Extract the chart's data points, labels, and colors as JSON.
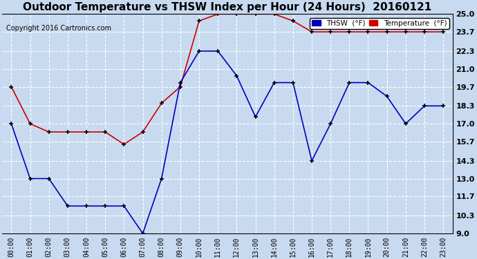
{
  "title": "Outdoor Temperature vs THSW Index per Hour (24 Hours)  20160121",
  "copyright": "Copyright 2016 Cartronics.com",
  "x_labels": [
    "00:00",
    "01:00",
    "02:00",
    "03:00",
    "04:00",
    "05:00",
    "06:00",
    "07:00",
    "08:00",
    "09:00",
    "10:00",
    "11:00",
    "12:00",
    "13:00",
    "14:00",
    "15:00",
    "16:00",
    "17:00",
    "18:00",
    "19:00",
    "20:00",
    "21:00",
    "22:00",
    "23:00"
  ],
  "thsw_values": [
    17.0,
    13.0,
    13.0,
    11.0,
    11.0,
    11.0,
    11.0,
    9.0,
    13.0,
    20.0,
    22.3,
    22.3,
    20.5,
    17.5,
    20.0,
    20.0,
    14.3,
    17.0,
    20.0,
    20.0,
    19.0,
    17.0,
    18.3,
    18.3
  ],
  "temp_values": [
    19.7,
    17.0,
    16.4,
    16.4,
    16.4,
    16.4,
    15.5,
    16.4,
    18.5,
    19.7,
    24.5,
    25.0,
    25.0,
    25.0,
    25.0,
    24.5,
    23.7,
    23.7,
    23.7,
    23.7,
    23.7,
    23.7,
    23.7,
    23.7
  ],
  "ylim": [
    9.0,
    25.0
  ],
  "yticks": [
    9.0,
    10.3,
    11.7,
    13.0,
    14.3,
    15.7,
    17.0,
    18.3,
    19.7,
    21.0,
    22.3,
    23.7,
    25.0
  ],
  "thsw_color": "#0000bb",
  "temp_color": "#cc0000",
  "bg_color": "#c8daf0",
  "grid_color": "#b0c4de",
  "title_fontsize": 11,
  "legend_thsw_label": "THSW  (°F)",
  "legend_temp_label": "Temperature  (°F)",
  "thsw_legend_color": "#0000bb",
  "temp_legend_color": "#cc0000"
}
